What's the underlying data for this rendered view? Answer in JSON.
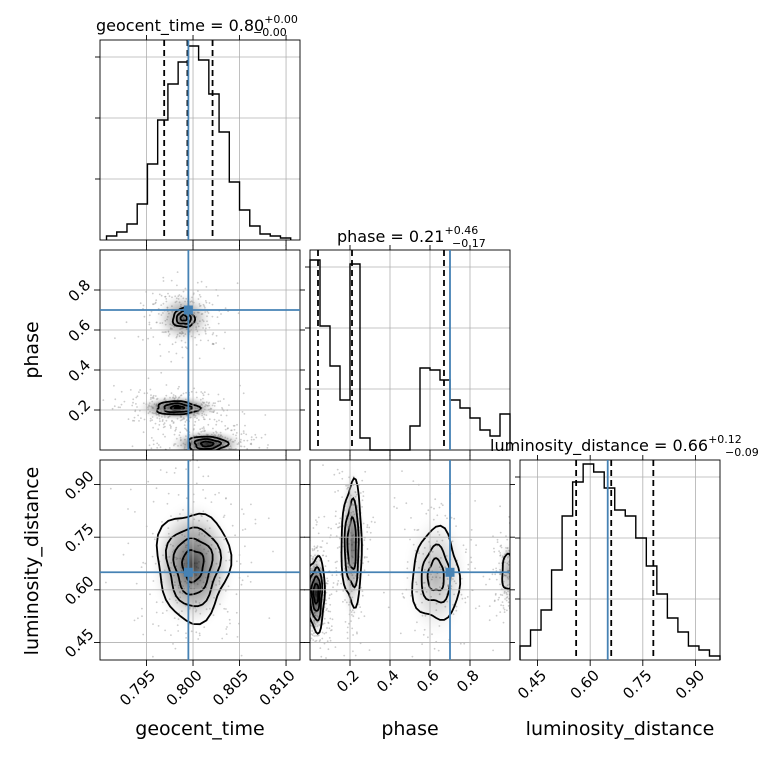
{
  "chart_data": {
    "type": "corner",
    "parameters": [
      "geocent_time",
      "phase",
      "luminosity_distance"
    ],
    "truth_color": "#4682b4",
    "truths": {
      "geocent_time": 0.7995,
      "phase": 0.7,
      "luminosity_distance": 0.65
    },
    "diagonal": [
      {
        "parameter": "geocent_time",
        "title": "geocent_time = 0.80",
        "title_plus": "+0.00",
        "title_minus": "−0.00",
        "range": [
          0.79,
          0.8115
        ],
        "bin_edges": [
          0.7907,
          0.7918,
          0.7929,
          0.794,
          0.7951,
          0.7962,
          0.7973,
          0.7984,
          0.7995,
          0.8006,
          0.8017,
          0.8028,
          0.8039,
          0.805,
          0.8061,
          0.8072,
          0.8083,
          0.8094,
          0.8105
        ],
        "counts": [
          0.02,
          0.04,
          0.08,
          0.18,
          0.38,
          0.6,
          0.78,
          0.89,
          0.97,
          0.9,
          0.73,
          0.54,
          0.29,
          0.15,
          0.07,
          0.03,
          0.02,
          0.01
        ],
        "quantiles": [
          0.7969,
          0.7994,
          0.8021
        ],
        "ticks": [
          0.795,
          0.8,
          0.805,
          0.81
        ],
        "ticklabels": [
          "0.795",
          "0.800",
          "0.805",
          "0.810"
        ]
      },
      {
        "parameter": "phase",
        "title": "phase = 0.21",
        "title_plus": "+0.46",
        "title_minus": "−0.17",
        "range": [
          0.0,
          1.0
        ],
        "bin_edges": [
          0.0,
          0.05,
          0.1,
          0.15,
          0.2,
          0.25,
          0.3,
          0.35,
          0.4,
          0.45,
          0.5,
          0.55,
          0.6,
          0.65,
          0.7,
          0.75,
          0.8,
          0.85,
          0.9,
          0.95,
          1.0
        ],
        "counts": [
          0.95,
          0.62,
          0.42,
          0.25,
          0.93,
          0.06,
          0.0,
          0.0,
          0.0,
          0.0,
          0.12,
          0.41,
          0.4,
          0.35,
          0.25,
          0.21,
          0.16,
          0.1,
          0.07,
          0.18
        ],
        "quantiles": [
          0.04,
          0.21,
          0.67
        ],
        "ticks": [
          0.2,
          0.4,
          0.6,
          0.8
        ],
        "ticklabels": [
          "0.2",
          "0.4",
          "0.6",
          "0.8"
        ]
      },
      {
        "parameter": "luminosity_distance",
        "title": "luminosity_distance = 0.66",
        "title_plus": "+0.12",
        "title_minus": "−0.09",
        "range": [
          0.4,
          0.97
        ],
        "bin_edges": [
          0.4,
          0.43,
          0.46,
          0.49,
          0.52,
          0.55,
          0.58,
          0.61,
          0.64,
          0.67,
          0.7,
          0.73,
          0.76,
          0.79,
          0.82,
          0.85,
          0.88,
          0.91,
          0.94,
          0.97
        ],
        "counts": [
          0.07,
          0.15,
          0.25,
          0.45,
          0.72,
          0.89,
          0.98,
          0.94,
          0.86,
          0.75,
          0.72,
          0.61,
          0.47,
          0.33,
          0.21,
          0.14,
          0.07,
          0.05,
          0.02
        ],
        "quantiles": [
          0.56,
          0.66,
          0.78
        ],
        "ticks": [
          0.45,
          0.6,
          0.75,
          0.9
        ],
        "ticklabels": [
          "0.45",
          "0.60",
          "0.75",
          "0.90"
        ]
      }
    ],
    "y_ticks": {
      "phase": {
        "ticks": [
          0.2,
          0.4,
          0.6,
          0.8
        ],
        "ticklabels": [
          "0.2",
          "0.4",
          "0.6",
          "0.8"
        ],
        "range": [
          0.0,
          1.0
        ]
      },
      "luminosity_distance": {
        "ticks": [
          0.45,
          0.6,
          0.75,
          0.9
        ],
        "ticklabels": [
          "0.45",
          "0.60",
          "0.75",
          "0.90"
        ],
        "range": [
          0.4,
          0.97
        ]
      }
    },
    "labels": {
      "x": [
        "geocent_time",
        "phase",
        "luminosity_distance"
      ],
      "y": [
        "phase",
        "luminosity_distance"
      ]
    },
    "density_blobs": [
      {
        "panel": "geocent_time-phase",
        "cx": 0.799,
        "cy": 0.66,
        "sx": 0.0017,
        "sy": 0.07,
        "peak": 0.55,
        "levels": [
          0.68,
          0.45,
          0.2
        ]
      },
      {
        "panel": "geocent_time-phase",
        "cx": 0.7983,
        "cy": 0.21,
        "sx": 0.0024,
        "sy": 0.035,
        "peak": 0.85,
        "levels": [
          0.95,
          0.62,
          0.3,
          0.12
        ]
      },
      {
        "panel": "geocent_time-phase",
        "cx": 0.8015,
        "cy": 0.03,
        "sx": 0.0022,
        "sy": 0.04,
        "peak": 0.85,
        "levels": [
          0.95,
          0.62,
          0.3
        ]
      },
      {
        "panel": "geocent_time-luminosity_distance",
        "cx": 0.8,
        "cy": 0.67,
        "sx": 0.0025,
        "sy": 0.1,
        "peak": 0.75,
        "levels": [
          1.55,
          1.12,
          0.8,
          0.45
        ]
      },
      {
        "panel": "phase-luminosity_distance",
        "cx": 0.03,
        "cy": 0.59,
        "sx": 0.03,
        "sy": 0.07,
        "peak": 0.9,
        "levels": [
          1.5,
          1.05,
          0.7,
          0.4
        ]
      },
      {
        "panel": "phase-luminosity_distance",
        "cx": 0.21,
        "cy": 0.73,
        "sx": 0.035,
        "sy": 0.12,
        "peak": 0.6,
        "levels": [
          1.45,
          1.0,
          0.6
        ]
      },
      {
        "panel": "phase-luminosity_distance",
        "cx": 0.63,
        "cy": 0.64,
        "sx": 0.09,
        "sy": 0.1,
        "peak": 0.3,
        "levels": [
          1.3,
          0.8,
          0.45
        ]
      },
      {
        "panel": "phase-luminosity_distance",
        "cx": 0.99,
        "cy": 0.65,
        "sx": 0.03,
        "sy": 0.05,
        "peak": 0.3,
        "levels": [
          1.0
        ]
      }
    ]
  }
}
